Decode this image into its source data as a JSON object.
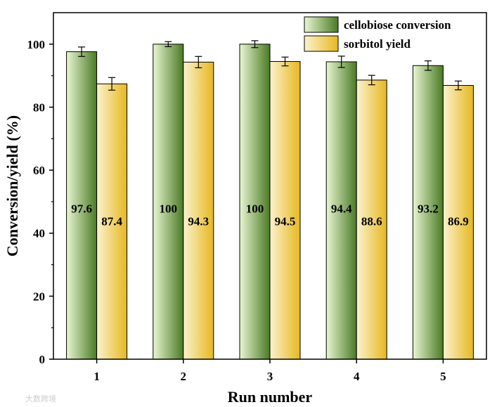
{
  "chart_data": {
    "type": "bar",
    "title": "",
    "xlabel": "Run number",
    "ylabel": "Conversion/yield (%)",
    "categories": [
      "1",
      "2",
      "3",
      "4",
      "5"
    ],
    "ylim": [
      0,
      110
    ],
    "yticks": [
      0,
      20,
      40,
      60,
      80,
      100
    ],
    "series": [
      {
        "name": "cellobiose conversion",
        "values": [
          97.6,
          100,
          100,
          94.4,
          93.2
        ],
        "errors": [
          1.5,
          0.8,
          1.1,
          1.8,
          1.5
        ],
        "labels": [
          "97.6",
          "100",
          "100",
          "94.4",
          "93.2"
        ],
        "color_dark": "#4a7a24",
        "color_light": "#e9f6d2"
      },
      {
        "name": "sorbitol yield",
        "values": [
          87.4,
          94.3,
          94.5,
          88.6,
          86.9
        ],
        "errors": [
          2.0,
          1.8,
          1.4,
          1.5,
          1.4
        ],
        "labels": [
          "87.4",
          "94.3",
          "94.5",
          "88.6",
          "86.9"
        ],
        "color_dark": "#e6b820",
        "color_light": "#fbf2cf"
      }
    ],
    "legend_position": "top-right",
    "grid": false
  },
  "watermark": "大数跨境"
}
